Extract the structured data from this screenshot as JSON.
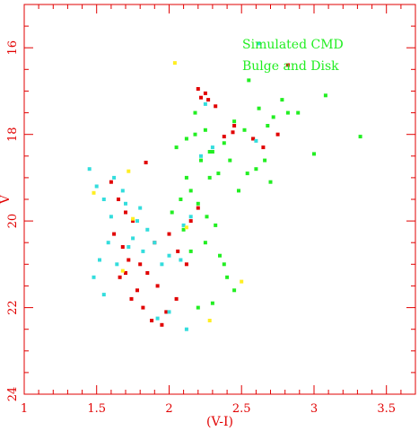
{
  "chart_data": {
    "type": "scatter",
    "title": "",
    "xlabel": "(V-I)",
    "ylabel": "V",
    "xlim": [
      1.0,
      3.7
    ],
    "ylim": [
      24,
      15
    ],
    "y_inverted": true,
    "xticks": [
      "1",
      "1.5",
      "2",
      "2.5",
      "3",
      "3.5"
    ],
    "yticks": [
      "16",
      "18",
      "20",
      "22",
      "24"
    ],
    "grid": false,
    "legend": "none",
    "frame_color": "#e10000",
    "annotations": [
      "Simulated CMD",
      "Bulge and Disk"
    ],
    "series": [
      {
        "color": "#22ee22",
        "points": [
          [
            2.05,
            18.3
          ],
          [
            2.12,
            18.1
          ],
          [
            2.18,
            18.0
          ],
          [
            2.25,
            17.9
          ],
          [
            2.3,
            18.4
          ],
          [
            2.38,
            18.2
          ],
          [
            2.45,
            17.7
          ],
          [
            2.52,
            17.9
          ],
          [
            2.58,
            18.1
          ],
          [
            2.62,
            17.4
          ],
          [
            2.68,
            17.8
          ],
          [
            2.72,
            17.6
          ],
          [
            2.78,
            17.2
          ],
          [
            2.82,
            17.5
          ],
          [
            2.89,
            17.5
          ],
          [
            2.54,
            18.9
          ],
          [
            2.6,
            18.8
          ],
          [
            2.66,
            18.6
          ],
          [
            2.7,
            19.1
          ],
          [
            2.48,
            19.3
          ],
          [
            2.42,
            18.6
          ],
          [
            2.34,
            18.9
          ],
          [
            2.28,
            19.0
          ],
          [
            2.22,
            18.6
          ],
          [
            2.15,
            19.3
          ],
          [
            2.08,
            19.5
          ],
          [
            2.02,
            19.8
          ],
          [
            2.2,
            19.6
          ],
          [
            2.26,
            19.9
          ],
          [
            2.32,
            20.1
          ],
          [
            2.1,
            20.2
          ],
          [
            2.25,
            20.5
          ],
          [
            2.35,
            20.8
          ],
          [
            2.4,
            21.3
          ],
          [
            2.45,
            21.6
          ],
          [
            2.3,
            21.9
          ],
          [
            2.2,
            22.0
          ],
          [
            2.38,
            21.0
          ],
          [
            2.15,
            20.7
          ],
          [
            3.32,
            18.05
          ],
          [
            3.0,
            18.45
          ],
          [
            3.08,
            17.1
          ],
          [
            2.55,
            16.75
          ],
          [
            2.18,
            17.5
          ],
          [
            2.12,
            19.0
          ],
          [
            2.28,
            18.4
          ]
        ]
      },
      {
        "color": "#e10000",
        "points": [
          [
            2.2,
            16.95
          ],
          [
            2.25,
            17.05
          ],
          [
            2.22,
            17.15
          ],
          [
            2.27,
            17.2
          ],
          [
            2.32,
            17.35
          ],
          [
            2.45,
            17.8
          ],
          [
            2.44,
            17.95
          ],
          [
            2.38,
            18.05
          ],
          [
            2.58,
            18.1
          ],
          [
            2.65,
            18.3
          ],
          [
            2.75,
            18.0
          ],
          [
            2.82,
            16.4
          ],
          [
            1.6,
            19.1
          ],
          [
            1.65,
            19.5
          ],
          [
            1.7,
            19.8
          ],
          [
            1.75,
            20.0
          ],
          [
            1.62,
            20.3
          ],
          [
            1.68,
            20.6
          ],
          [
            1.72,
            20.9
          ],
          [
            1.8,
            21.0
          ],
          [
            1.85,
            21.2
          ],
          [
            1.78,
            21.6
          ],
          [
            1.92,
            21.5
          ],
          [
            1.98,
            22.1
          ],
          [
            1.88,
            22.3
          ],
          [
            1.95,
            22.4
          ],
          [
            1.82,
            22.0
          ],
          [
            1.74,
            21.8
          ],
          [
            1.66,
            21.3
          ],
          [
            1.9,
            20.5
          ],
          [
            2.0,
            20.3
          ],
          [
            2.06,
            20.7
          ],
          [
            2.15,
            20.0
          ],
          [
            2.2,
            19.7
          ],
          [
            2.12,
            21.0
          ],
          [
            2.05,
            21.8
          ],
          [
            1.7,
            21.2
          ],
          [
            1.84,
            18.65
          ]
        ]
      },
      {
        "color": "#33dddd",
        "points": [
          [
            1.45,
            18.8
          ],
          [
            1.5,
            19.2
          ],
          [
            1.55,
            19.5
          ],
          [
            1.6,
            19.9
          ],
          [
            1.62,
            19.0
          ],
          [
            1.68,
            19.3
          ],
          [
            1.7,
            19.6
          ],
          [
            1.75,
            20.4
          ],
          [
            1.78,
            20.0
          ],
          [
            1.82,
            20.7
          ],
          [
            1.58,
            20.5
          ],
          [
            1.52,
            20.9
          ],
          [
            1.48,
            21.3
          ],
          [
            1.64,
            21.0
          ],
          [
            1.8,
            19.7
          ],
          [
            1.85,
            20.2
          ],
          [
            1.9,
            20.5
          ],
          [
            1.95,
            21.0
          ],
          [
            2.0,
            20.8
          ],
          [
            2.1,
            20.1
          ],
          [
            2.15,
            19.9
          ],
          [
            2.22,
            18.5
          ],
          [
            2.3,
            18.3
          ],
          [
            2.25,
            17.3
          ],
          [
            2.62,
            15.9
          ],
          [
            2.6,
            18.15
          ],
          [
            1.92,
            22.25
          ],
          [
            2.0,
            22.1
          ],
          [
            2.12,
            22.5
          ],
          [
            1.55,
            21.7
          ],
          [
            1.72,
            20.6
          ],
          [
            2.08,
            20.9
          ]
        ]
      },
      {
        "color": "#ffee22",
        "points": [
          [
            2.04,
            16.35
          ],
          [
            1.48,
            19.35
          ],
          [
            1.72,
            18.85
          ],
          [
            2.12,
            20.15
          ],
          [
            2.5,
            21.4
          ],
          [
            2.28,
            22.3
          ],
          [
            1.75,
            19.95
          ],
          [
            1.68,
            21.15
          ]
        ]
      }
    ]
  }
}
